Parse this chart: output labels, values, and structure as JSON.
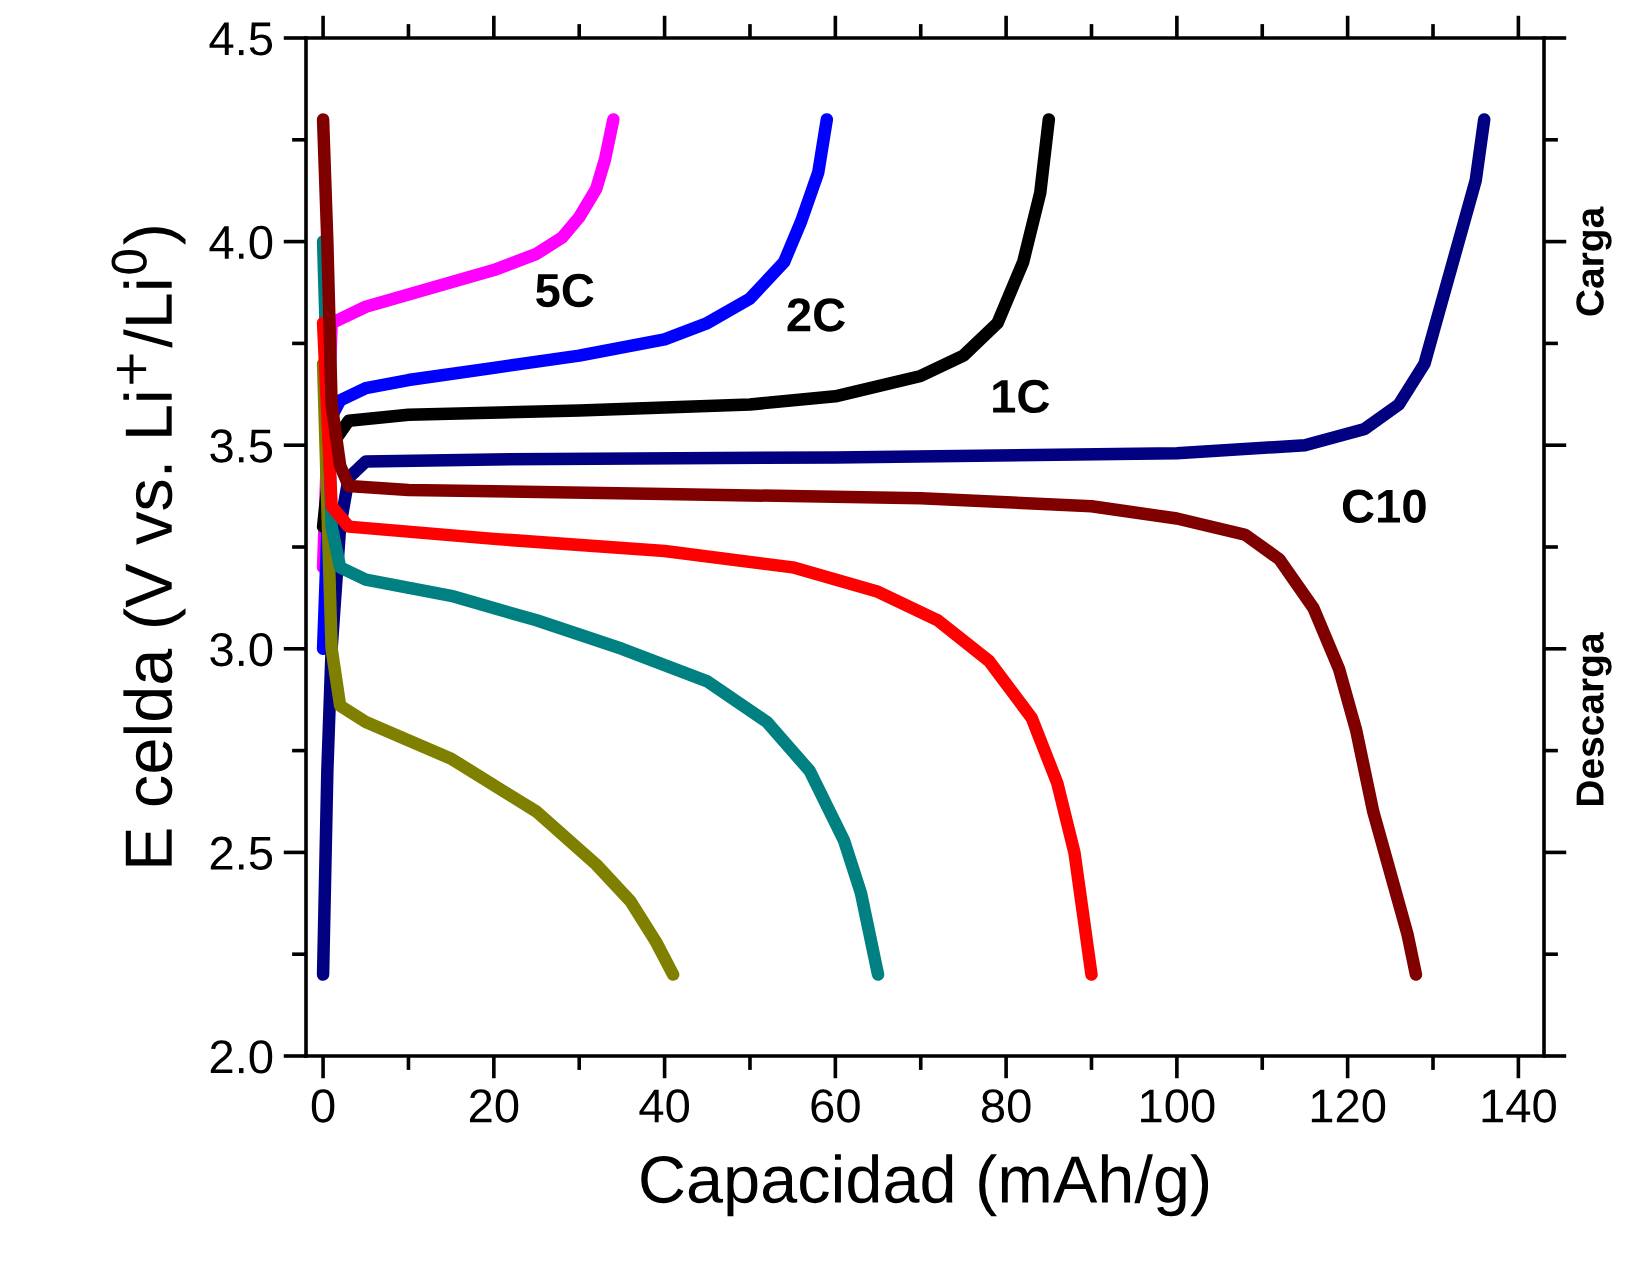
{
  "chart_data": {
    "type": "line",
    "xlabel": "Capacidad (mAh/g)",
    "ylabel": "E celda (V vs. Li$^{+}$/Li$^{0}$)",
    "xlim": [
      -2,
      143
    ],
    "ylim": [
      2.0,
      4.5
    ],
    "xticks": [
      0,
      20,
      40,
      60,
      80,
      100,
      120,
      140
    ],
    "yticks": [
      {
        "value": 2.0,
        "label": "2.0"
      },
      {
        "value": 2.5,
        "label": "2.5"
      },
      {
        "value": 3.0,
        "label": "3.0"
      },
      {
        "value": 3.5,
        "label": "3.5"
      },
      {
        "value": 4.0,
        "label": "4.0"
      },
      {
        "value": 4.5,
        "label": "4.5"
      }
    ],
    "grid": false,
    "marker": "none",
    "line_style": "solid",
    "series": [
      {
        "color": "#ff00ff",
        "x": [
          0,
          1,
          5,
          10,
          15,
          20,
          25,
          28,
          30,
          32,
          33,
          34
        ],
        "values": [
          3.2,
          3.8,
          3.84,
          3.87,
          3.9,
          3.93,
          3.97,
          4.01,
          4.06,
          4.13,
          4.2,
          4.3
        ]
      },
      {
        "color": "#0000ff",
        "x": [
          0,
          1,
          2,
          5,
          10,
          20,
          30,
          40,
          45,
          50,
          54,
          56,
          58,
          59
        ],
        "values": [
          3.0,
          3.57,
          3.61,
          3.64,
          3.66,
          3.69,
          3.72,
          3.76,
          3.8,
          3.86,
          3.95,
          4.05,
          4.17,
          4.3
        ]
      },
      {
        "color": "#000000",
        "x": [
          0,
          1,
          3,
          10,
          30,
          50,
          60,
          70,
          75,
          79,
          82,
          84,
          85
        ],
        "values": [
          3.3,
          3.5,
          3.56,
          3.575,
          3.585,
          3.6,
          3.62,
          3.67,
          3.72,
          3.8,
          3.95,
          4.12,
          4.3
        ]
      },
      {
        "color": "#000080",
        "x": [
          0,
          0.5,
          1,
          2,
          3,
          5,
          20,
          60,
          100,
          115,
          122,
          126,
          129,
          131,
          133,
          135,
          136
        ],
        "values": [
          2.2,
          2.7,
          3.0,
          3.3,
          3.42,
          3.46,
          3.465,
          3.47,
          3.48,
          3.5,
          3.54,
          3.6,
          3.7,
          3.85,
          4.0,
          4.15,
          4.3
        ]
      },
      {
        "color": "#808000",
        "x": [
          0,
          1,
          2,
          5,
          15,
          25,
          32,
          36,
          39,
          41
        ],
        "values": [
          3.7,
          3.0,
          2.86,
          2.82,
          2.73,
          2.6,
          2.47,
          2.38,
          2.28,
          2.2
        ]
      },
      {
        "color": "#008080",
        "x": [
          0,
          1,
          2,
          5,
          15,
          25,
          35,
          45,
          52,
          57,
          61,
          63,
          65
        ],
        "values": [
          4.0,
          3.3,
          3.2,
          3.17,
          3.13,
          3.07,
          3.0,
          2.92,
          2.82,
          2.7,
          2.53,
          2.4,
          2.2
        ]
      },
      {
        "color": "#ff0000",
        "x": [
          0,
          1,
          3,
          20,
          40,
          55,
          65,
          72,
          78,
          83,
          86,
          88,
          89,
          90
        ],
        "values": [
          3.8,
          3.35,
          3.3,
          3.27,
          3.24,
          3.2,
          3.14,
          3.07,
          2.97,
          2.83,
          2.67,
          2.5,
          2.35,
          2.2
        ]
      },
      {
        "color": "#800000",
        "x": [
          0,
          0.5,
          1,
          2,
          3,
          10,
          40,
          70,
          90,
          100,
          108,
          112,
          116,
          119,
          121,
          123,
          125,
          127,
          128
        ],
        "values": [
          4.3,
          4.0,
          3.6,
          3.45,
          3.4,
          3.39,
          3.38,
          3.37,
          3.35,
          3.32,
          3.28,
          3.22,
          3.1,
          2.95,
          2.8,
          2.6,
          2.45,
          2.3,
          2.2
        ]
      }
    ],
    "annotations": [
      "5C",
      "2C",
      "1C",
      "C10",
      "Carga",
      "Descarga"
    ]
  }
}
